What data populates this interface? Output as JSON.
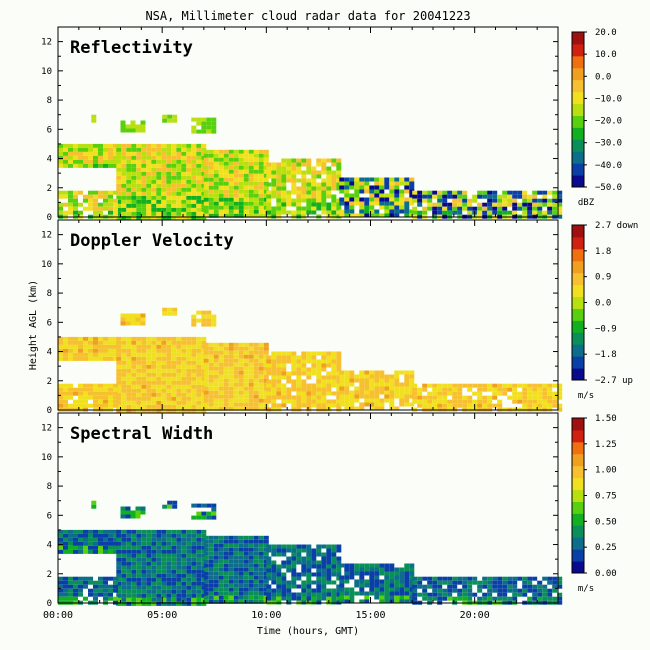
{
  "title": "NSA, Millimeter cloud radar data for 20041223",
  "xlabel": "Time (hours, GMT)",
  "ylabel": "Height AGL (km)",
  "colors": {
    "background": "#fbfdf8",
    "cmap": [
      "#0a0a8c",
      "#0b3fa8",
      "#0c6e8a",
      "#0a8f5a",
      "#10b020",
      "#58d010",
      "#b8e010",
      "#f0e020",
      "#f7c030",
      "#f0a020",
      "#f07010",
      "#d02010",
      "#a01010"
    ]
  },
  "chart_data": [
    {
      "type": "heatmap",
      "title": "Reflectivity",
      "xlim": [
        0,
        24
      ],
      "ylim": [
        0,
        13
      ],
      "xticks": [
        "00:00",
        "05:00",
        "10:00",
        "15:00",
        "20:00"
      ],
      "xtick_values": [
        0,
        5,
        10,
        15,
        20
      ],
      "yticks": [
        0,
        2,
        4,
        6,
        8,
        10,
        12
      ],
      "colorbar": {
        "ticks": [
          "20.0",
          "10.0",
          "0.0",
          "−10.0",
          "−20.0",
          "−30.0",
          "−40.0",
          "−50.0"
        ],
        "unit": "dBZ"
      },
      "style": "refl"
    },
    {
      "type": "heatmap",
      "title": "Doppler Velocity",
      "xlim": [
        0,
        24
      ],
      "ylim": [
        0,
        13
      ],
      "xticks": [
        "00:00",
        "05:00",
        "10:00",
        "15:00",
        "20:00"
      ],
      "xtick_values": [
        0,
        5,
        10,
        15,
        20
      ],
      "yticks": [
        0,
        2,
        4,
        6,
        8,
        10,
        12
      ],
      "colorbar": {
        "ticks": [
          "2.7 down",
          "1.8",
          "0.9",
          "0.0",
          "−0.9",
          "−1.8",
          "−2.7 up"
        ],
        "unit": "m/s"
      },
      "style": "vel"
    },
    {
      "type": "heatmap",
      "title": "Spectral Width",
      "xlim": [
        0,
        24
      ],
      "ylim": [
        0,
        13
      ],
      "xticks": [
        "00:00",
        "05:00",
        "10:00",
        "15:00",
        "20:00"
      ],
      "xtick_values": [
        0,
        5,
        10,
        15,
        20
      ],
      "yticks": [
        0,
        2,
        4,
        6,
        8,
        10,
        12
      ],
      "colorbar": {
        "ticks": [
          "1.50",
          "1.25",
          "1.00",
          "0.75",
          "0.50",
          "0.25",
          "0.00"
        ],
        "unit": "m/s"
      },
      "style": "width"
    }
  ],
  "cloud_regions": [
    {
      "x0": 0.0,
      "x1": 2.8,
      "y0": 3.4,
      "y1": 5.0
    },
    {
      "x0": 2.8,
      "x1": 7.0,
      "y0": 0.0,
      "y1": 5.0
    },
    {
      "x0": 7.0,
      "x1": 10.0,
      "y0": 0.0,
      "y1": 4.6
    },
    {
      "x0": 10.0,
      "x1": 13.5,
      "y0": 0.0,
      "y1": 4.0
    },
    {
      "x0": 13.5,
      "x1": 17.0,
      "y0": 0.0,
      "y1": 2.7
    },
    {
      "x0": 17.0,
      "x1": 24.0,
      "y0": 0.0,
      "y1": 1.8
    },
    {
      "x0": 0.0,
      "x1": 2.8,
      "y0": 0.0,
      "y1": 1.8
    },
    {
      "x0": 3.0,
      "x1": 4.0,
      "y0": 6.0,
      "y1": 6.6
    },
    {
      "x0": 6.4,
      "x1": 7.4,
      "y0": 5.8,
      "y1": 6.8
    },
    {
      "x0": 1.6,
      "x1": 1.8,
      "y0": 6.6,
      "y1": 7.0
    },
    {
      "x0": 5.0,
      "x1": 5.6,
      "y0": 6.6,
      "y1": 7.0
    }
  ]
}
